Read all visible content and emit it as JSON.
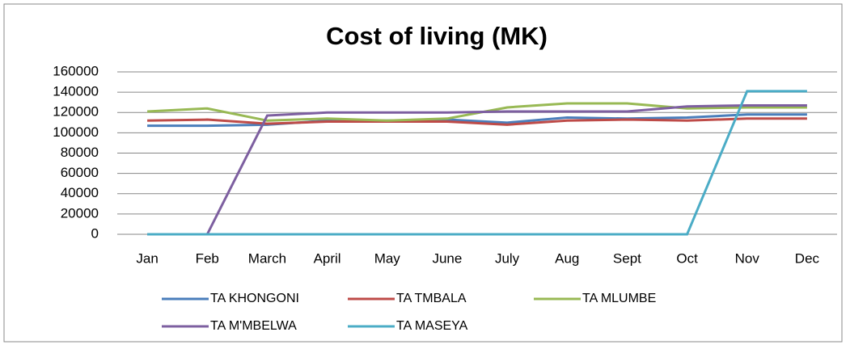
{
  "chart_data": {
    "type": "line",
    "title": "Cost of living (MK)",
    "categories": [
      "Jan",
      "Feb",
      "March",
      "April",
      "May",
      "June",
      "July",
      "Aug",
      "Sept",
      "Oct",
      "Nov",
      "Dec"
    ],
    "series": [
      {
        "name": "TA KHONGONI",
        "color": "#4a7ebb",
        "values": [
          107000,
          107000,
          108000,
          112000,
          112000,
          113000,
          110000,
          115000,
          114000,
          115000,
          118000,
          118000
        ]
      },
      {
        "name": "TA TMBALA",
        "color": "#be4b48",
        "values": [
          112000,
          113000,
          109000,
          111000,
          111000,
          111000,
          108000,
          112000,
          113000,
          112000,
          114000,
          114000
        ]
      },
      {
        "name": "TA MLUMBE",
        "color": "#98b954",
        "values": [
          121000,
          124000,
          112000,
          114000,
          112000,
          114000,
          125000,
          129000,
          129000,
          124000,
          125000,
          125000
        ]
      },
      {
        "name": "TA M'MBELWA",
        "color": "#7d5fa0",
        "values": [
          0,
          0,
          117000,
          120000,
          120000,
          120000,
          121000,
          121000,
          121000,
          126000,
          127000,
          127000
        ]
      },
      {
        "name": "TA MASEYA",
        "color": "#4bacc6",
        "values": [
          0,
          0,
          0,
          0,
          0,
          0,
          0,
          0,
          0,
          0,
          141000,
          141000
        ]
      }
    ],
    "ylim": [
      0,
      160000
    ],
    "yticks": [
      0,
      20000,
      40000,
      60000,
      80000,
      100000,
      120000,
      140000,
      160000
    ],
    "grid": true,
    "legend": "bottom"
  }
}
